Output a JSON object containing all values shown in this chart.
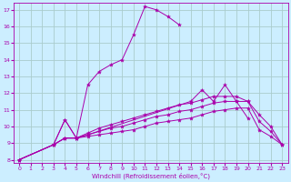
{
  "bg_color": "#cceeff",
  "grid_color": "#aacccc",
  "line_color": "#aa00aa",
  "xlabel": "Windchill (Refroidissement éolien,°C)",
  "xlim": [
    -0.5,
    23.5
  ],
  "ylim": [
    7.8,
    17.4
  ],
  "yticks": [
    8,
    9,
    10,
    11,
    12,
    13,
    14,
    15,
    16,
    17
  ],
  "xticks": [
    0,
    1,
    2,
    3,
    4,
    5,
    6,
    7,
    8,
    9,
    10,
    11,
    12,
    13,
    14,
    15,
    16,
    17,
    18,
    19,
    20,
    21,
    22,
    23
  ],
  "series": [
    {
      "x": [
        0,
        3,
        4,
        5,
        6,
        7,
        8,
        9,
        10,
        11,
        12,
        13,
        14
      ],
      "y": [
        8.0,
        8.9,
        10.4,
        9.3,
        12.5,
        13.3,
        13.7,
        14.0,
        15.5,
        17.2,
        17.0,
        16.6,
        16.1
      ]
    },
    {
      "x": [
        3,
        4,
        5,
        6,
        15,
        16,
        17,
        18,
        19,
        20
      ],
      "y": [
        8.9,
        10.4,
        9.3,
        9.5,
        11.5,
        12.2,
        11.5,
        12.5,
        11.5,
        10.5
      ]
    },
    {
      "x": [
        0,
        3,
        4,
        5,
        6,
        7,
        8,
        9,
        10,
        11,
        12,
        13,
        14,
        15,
        16,
        17,
        18,
        19,
        20,
        21,
        22,
        23
      ],
      "y": [
        8.0,
        8.9,
        9.3,
        9.3,
        9.4,
        9.5,
        9.6,
        9.7,
        9.8,
        10.0,
        10.2,
        10.3,
        10.4,
        10.5,
        10.7,
        10.9,
        11.0,
        11.1,
        11.1,
        9.8,
        9.4,
        8.9
      ]
    },
    {
      "x": [
        0,
        3,
        4,
        5,
        6,
        7,
        8,
        9,
        10,
        11,
        12,
        13,
        14,
        15,
        16,
        17,
        18,
        19,
        20,
        21,
        22,
        23
      ],
      "y": [
        8.0,
        8.9,
        9.3,
        9.3,
        9.5,
        9.7,
        9.9,
        10.0,
        10.2,
        10.4,
        10.6,
        10.7,
        10.9,
        11.0,
        11.2,
        11.4,
        11.5,
        11.5,
        11.5,
        10.3,
        9.7,
        8.9
      ]
    },
    {
      "x": [
        0,
        3,
        4,
        5,
        6,
        7,
        8,
        9,
        10,
        11,
        12,
        13,
        14,
        15,
        16,
        17,
        18,
        19,
        20,
        21,
        22,
        23
      ],
      "y": [
        8.0,
        8.9,
        9.3,
        9.3,
        9.6,
        9.9,
        10.1,
        10.3,
        10.5,
        10.7,
        10.9,
        11.1,
        11.3,
        11.4,
        11.6,
        11.8,
        11.8,
        11.8,
        11.5,
        10.7,
        10.0,
        8.9
      ]
    }
  ]
}
